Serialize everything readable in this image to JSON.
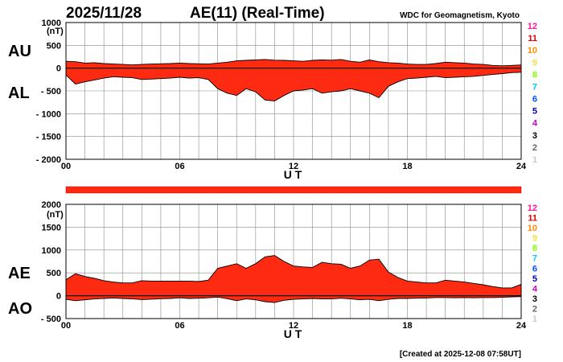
{
  "header": {
    "date": "2025/11/28",
    "title": "AE(11) (Real-Time)",
    "source": "WDC for Geomagnetism, Kyoto"
  },
  "footer": {
    "created": "[Created at 2025-12-08 07:58UT]"
  },
  "colors": {
    "fill": "#ff2a12",
    "stroke": "#000000",
    "grid": "#8a8a8a"
  },
  "station_legend": [
    {
      "label": "12",
      "color": "#ff1493"
    },
    {
      "label": "11",
      "color": "#e00000"
    },
    {
      "label": "10",
      "color": "#ff8c00"
    },
    {
      "label": "9",
      "color": "#f0e040"
    },
    {
      "label": "8",
      "color": "#7fff00"
    },
    {
      "label": "7",
      "color": "#00c8ff"
    },
    {
      "label": "6",
      "color": "#0050ff"
    },
    {
      "label": "5",
      "color": "#0000b0"
    },
    {
      "label": "4",
      "color": "#d000d0"
    },
    {
      "label": "3",
      "color": "#000000"
    },
    {
      "label": "2",
      "color": "#666666"
    },
    {
      "label": "1",
      "color": "#c8c8c8"
    }
  ],
  "chart_data": [
    {
      "type": "area",
      "panel": "AU/AL",
      "series_labels": [
        "AU",
        "AL"
      ],
      "unit": "(nT)",
      "xlabel": "U T",
      "xlim": [
        0,
        24
      ],
      "x_ticks": [
        "00",
        "06",
        "12",
        "18",
        "24"
      ],
      "ylim": [
        -2000,
        1000
      ],
      "y_ticks": [
        1000,
        500,
        0,
        -500,
        -1000,
        -1500,
        -2000
      ],
      "y_tick_labels": [
        "1000",
        "500",
        "0",
        "- 500",
        "- 1000",
        "- 1500",
        "- 2000"
      ],
      "grid": true,
      "x": [
        0,
        0.5,
        1,
        1.5,
        2,
        2.5,
        3,
        3.5,
        4,
        4.5,
        5,
        5.5,
        6,
        6.5,
        7,
        7.5,
        8,
        8.5,
        9,
        9.5,
        10,
        10.5,
        11,
        11.5,
        12,
        12.5,
        13,
        13.5,
        14,
        14.5,
        15,
        15.5,
        16,
        16.5,
        17,
        17.5,
        18,
        18.5,
        19,
        19.5,
        20,
        20.5,
        21,
        21.5,
        22,
        22.5,
        23,
        23.5,
        24
      ],
      "upper": [
        150,
        140,
        110,
        120,
        100,
        90,
        80,
        70,
        80,
        90,
        95,
        100,
        110,
        100,
        95,
        90,
        110,
        130,
        160,
        170,
        180,
        190,
        175,
        170,
        160,
        150,
        170,
        180,
        175,
        190,
        150,
        130,
        180,
        140,
        120,
        110,
        90,
        80,
        80,
        100,
        130,
        120,
        110,
        90,
        80,
        60,
        50,
        60,
        70
      ],
      "lower": [
        -150,
        -350,
        -300,
        -260,
        -220,
        -190,
        -200,
        -210,
        -250,
        -240,
        -230,
        -220,
        -200,
        -220,
        -210,
        -250,
        -450,
        -550,
        -600,
        -450,
        -520,
        -700,
        -720,
        -600,
        -500,
        -480,
        -450,
        -550,
        -520,
        -500,
        -450,
        -500,
        -550,
        -650,
        -400,
        -300,
        -230,
        -220,
        -200,
        -180,
        -210,
        -200,
        -190,
        -180,
        -160,
        -140,
        -120,
        -100,
        -90
      ]
    },
    {
      "type": "area",
      "panel": "AE/AO",
      "series_labels": [
        "AE",
        "AO"
      ],
      "unit": "(nT)",
      "xlabel": "U T",
      "xlim": [
        0,
        24
      ],
      "x_ticks": [
        "00",
        "06",
        "12",
        "18",
        "24"
      ],
      "ylim": [
        -500,
        2000
      ],
      "y_ticks": [
        2000,
        1500,
        1000,
        500,
        0,
        -500
      ],
      "y_tick_labels": [
        "2000",
        "1500",
        "1000",
        "500",
        "0",
        "- 500"
      ],
      "grid": true,
      "x": [
        0,
        0.5,
        1,
        1.5,
        2,
        2.5,
        3,
        3.5,
        4,
        4.5,
        5,
        5.5,
        6,
        6.5,
        7,
        7.5,
        8,
        8.5,
        9,
        9.5,
        10,
        10.5,
        11,
        11.5,
        12,
        12.5,
        13,
        13.5,
        14,
        14.5,
        15,
        15.5,
        16,
        16.5,
        17,
        17.5,
        18,
        18.5,
        19,
        19.5,
        20,
        20.5,
        21,
        21.5,
        22,
        22.5,
        23,
        23.5,
        24
      ],
      "upper": [
        350,
        480,
        420,
        380,
        330,
        300,
        280,
        280,
        330,
        320,
        320,
        320,
        320,
        320,
        310,
        340,
        600,
        650,
        700,
        600,
        700,
        850,
        880,
        750,
        650,
        630,
        620,
        730,
        700,
        690,
        600,
        650,
        780,
        800,
        520,
        400,
        320,
        300,
        280,
        280,
        340,
        320,
        300,
        270,
        240,
        200,
        170,
        170,
        250
      ],
      "lower": [
        -80,
        -110,
        -90,
        -70,
        -60,
        -50,
        -60,
        -70,
        -85,
        -75,
        -65,
        -60,
        -45,
        -60,
        -55,
        -45,
        -30,
        -65,
        -110,
        -70,
        -90,
        -130,
        -150,
        -100,
        -80,
        -70,
        -60,
        -70,
        -70,
        -55,
        -70,
        -90,
        -80,
        -110,
        -80,
        -60,
        -60,
        -55,
        -50,
        -40,
        -40,
        -45,
        -40,
        -45,
        -40,
        -40,
        -35,
        -25,
        -20
      ]
    }
  ]
}
